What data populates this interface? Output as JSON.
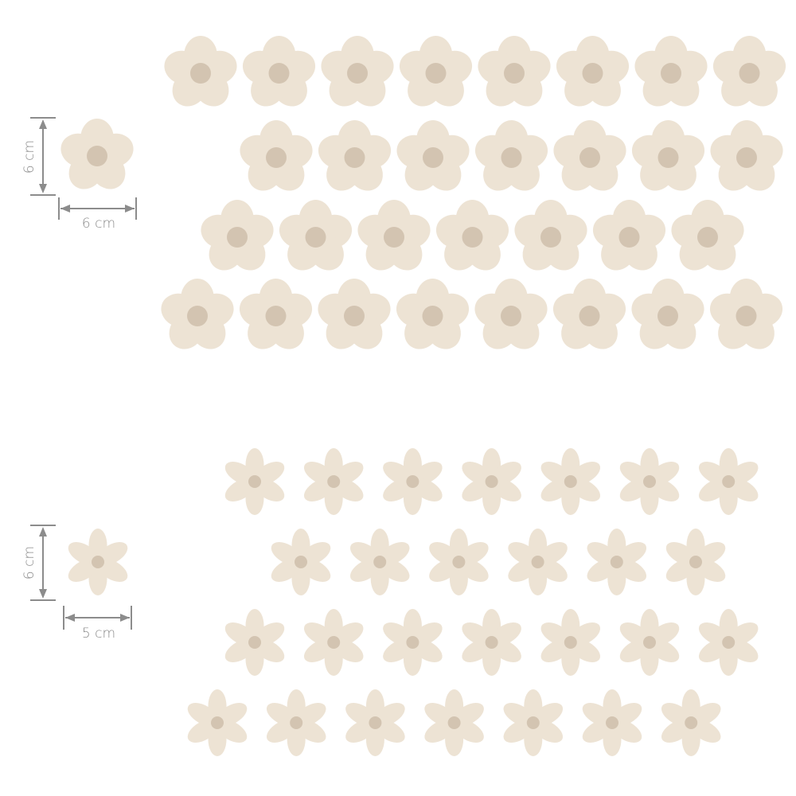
{
  "colors": {
    "petal": "#ede3d4",
    "center": "#d3c4b1",
    "dimension_line": "#8c8c8c"
  },
  "large_set": {
    "petal_count": 5,
    "height_label": "6 cm",
    "width_label": "6 cm",
    "rows": [
      8,
      7,
      7,
      8
    ]
  },
  "small_set": {
    "petal_count": 6,
    "height_label": "6 cm",
    "width_label": "5 cm",
    "rows": [
      7,
      6,
      7,
      7
    ]
  }
}
